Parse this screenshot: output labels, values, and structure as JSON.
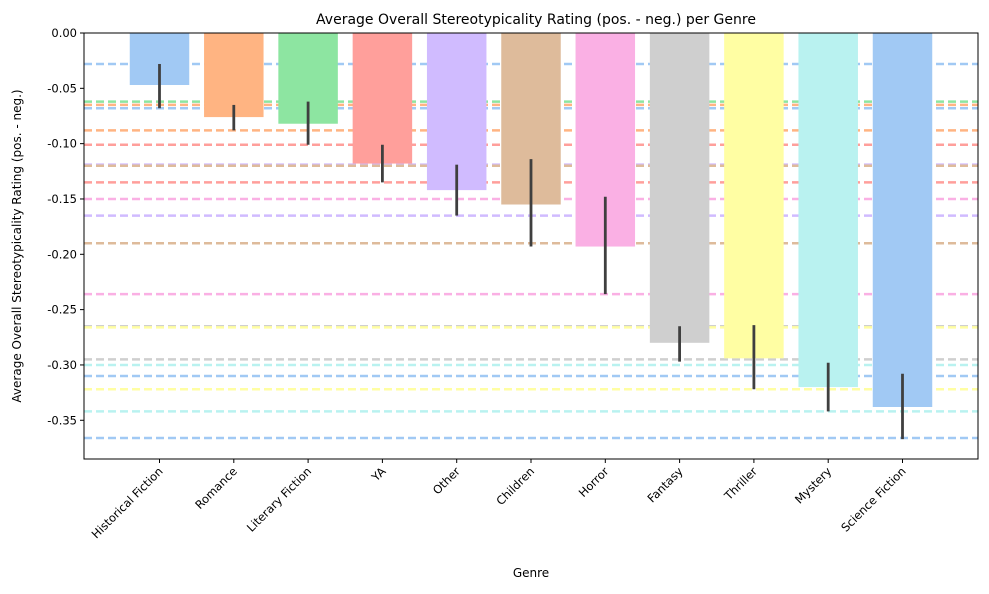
{
  "chart_data": {
    "type": "bar",
    "title": "Average Overall Stereotypicality Rating (pos. - neg.) per Genre",
    "xlabel": "Genre",
    "ylabel": "Average Overall Stereotypicality Rating (pos. - neg.)",
    "ylim": [
      -0.385,
      0.0
    ],
    "yticks": [
      0.0,
      -0.05,
      -0.1,
      -0.15,
      -0.2,
      -0.25,
      -0.3,
      -0.35
    ],
    "ytick_labels": [
      "0.00",
      "-0.05",
      "-0.10",
      "-0.15",
      "-0.20",
      "-0.25",
      "-0.30",
      "-0.35"
    ],
    "grid": false,
    "categories": [
      "Historical Fiction",
      "Romance",
      "Literary Fiction",
      "YA",
      "Other",
      "Children",
      "Horror",
      "Fantasy",
      "Thriller",
      "Mystery",
      "Science Fiction"
    ],
    "values": [
      -0.047,
      -0.076,
      -0.082,
      -0.118,
      -0.142,
      -0.155,
      -0.193,
      -0.28,
      -0.294,
      -0.32,
      -0.338
    ],
    "error_low": [
      -0.068,
      -0.088,
      -0.101,
      -0.135,
      -0.165,
      -0.193,
      -0.236,
      -0.297,
      -0.322,
      -0.342,
      -0.367
    ],
    "error_high": [
      -0.028,
      -0.065,
      -0.062,
      -0.101,
      -0.119,
      -0.114,
      -0.148,
      -0.265,
      -0.264,
      -0.298,
      -0.308
    ],
    "reference_lines": [
      {
        "genre": "Historical Fiction",
        "values": [
          -0.028,
          -0.068
        ]
      },
      {
        "genre": "Romance",
        "values": [
          -0.065,
          -0.088
        ]
      },
      {
        "genre": "Literary Fiction",
        "values": [
          -0.062,
          -0.101
        ]
      },
      {
        "genre": "YA",
        "values": [
          -0.101,
          -0.135
        ]
      },
      {
        "genre": "Other",
        "values": [
          -0.119,
          -0.165
        ]
      },
      {
        "genre": "Children",
        "values": [
          -0.12,
          -0.19
        ]
      },
      {
        "genre": "Horror",
        "values": [
          -0.15,
          -0.236
        ]
      },
      {
        "genre": "Fantasy",
        "values": [
          -0.265,
          -0.295
        ]
      },
      {
        "genre": "Thriller",
        "values": [
          -0.266,
          -0.322
        ]
      },
      {
        "genre": "Mystery",
        "values": [
          -0.3,
          -0.342
        ]
      },
      {
        "genre": "Science Fiction",
        "values": [
          -0.31,
          -0.366
        ]
      }
    ],
    "colors": [
      "#a1c9f4",
      "#ffb482",
      "#8de5a1",
      "#ff9f9b",
      "#d0bbff",
      "#debb9b",
      "#fab0e4",
      "#cfcfcf",
      "#fffea3",
      "#b9f2f0",
      "#a1c9f4"
    ]
  }
}
